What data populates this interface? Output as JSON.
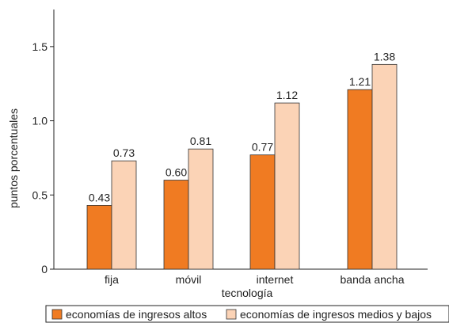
{
  "chart_data": {
    "type": "bar",
    "categories": [
      "fija",
      "móvil",
      "internet",
      "banda ancha"
    ],
    "series": [
      {
        "name": "economías de ingresos altos",
        "values": [
          0.43,
          0.6,
          0.77,
          1.21
        ],
        "labels": [
          "0.43",
          "0.60",
          "0.77",
          "1.21"
        ],
        "color": "#f07b22"
      },
      {
        "name": "economías de ingresos medios y bajos",
        "values": [
          0.73,
          0.81,
          1.12,
          1.38
        ],
        "labels": [
          "0.73",
          "0.81",
          "1.12",
          "1.38"
        ],
        "color": "#fbd3b6"
      }
    ],
    "xlabel": "tecnología",
    "ylabel": "puntos porcentuales",
    "ylim": [
      0,
      1.75
    ],
    "yticks": [
      0,
      0.5,
      1.0,
      1.5
    ],
    "ytick_labels": [
      "0",
      "0.5",
      "1.0",
      "1.5"
    ],
    "grid": false,
    "legend_position": "bottom"
  }
}
